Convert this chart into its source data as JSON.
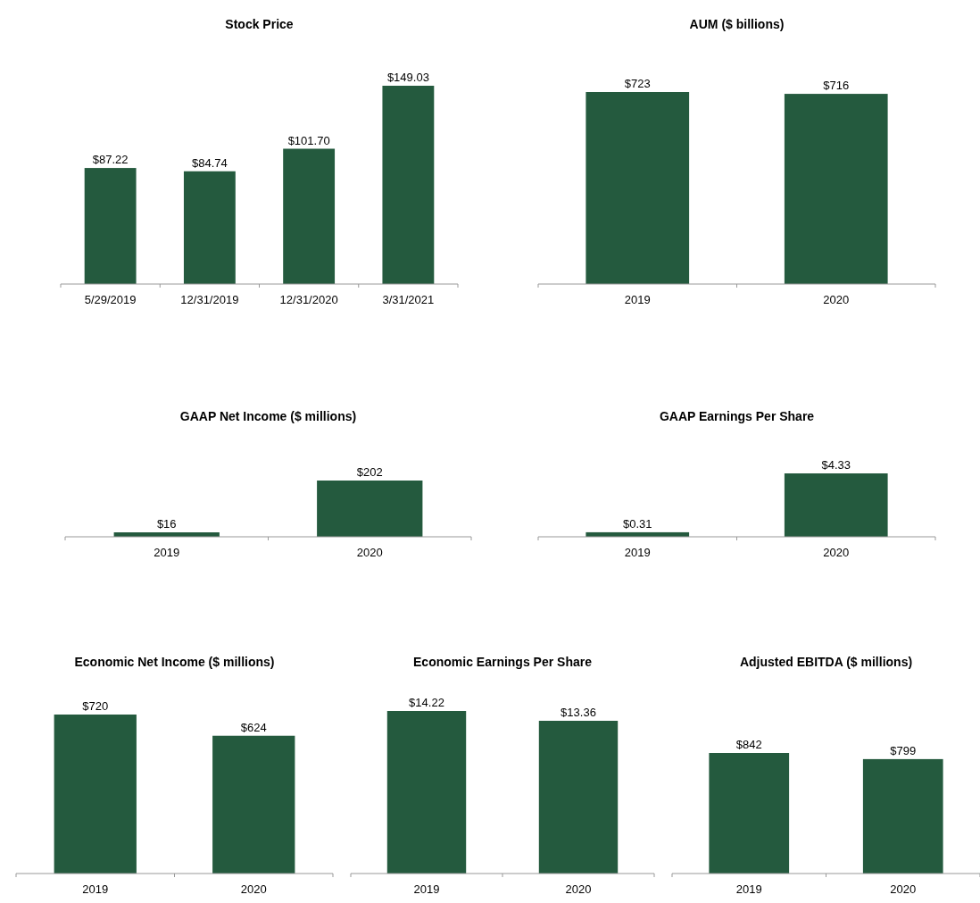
{
  "chart_data": [
    {
      "type": "bar",
      "title": "Stock Price",
      "categories": [
        "5/29/2019",
        "12/31/2019",
        "12/31/2020",
        "3/31/2021"
      ],
      "values": [
        87.22,
        84.74,
        101.7,
        149.03
      ],
      "value_labels": [
        "$87.22",
        "$84.74",
        "$101.70",
        "$149.03"
      ],
      "color": "#245a3e"
    },
    {
      "type": "bar",
      "title": "AUM ($ billions)",
      "categories": [
        "2019",
        "2020"
      ],
      "values": [
        723,
        716
      ],
      "value_labels": [
        "$723",
        "$716"
      ],
      "color": "#245a3e"
    },
    {
      "type": "bar",
      "title": "GAAP Net Income ($ millions)",
      "categories": [
        "2019",
        "2020"
      ],
      "values": [
        16,
        202
      ],
      "value_labels": [
        "$16",
        "$202"
      ],
      "color": "#245a3e"
    },
    {
      "type": "bar",
      "title": "GAAP Earnings Per Share",
      "categories": [
        "2019",
        "2020"
      ],
      "values": [
        0.31,
        4.33
      ],
      "value_labels": [
        "$0.31",
        "$4.33"
      ],
      "color": "#245a3e"
    },
    {
      "type": "bar",
      "title": "Economic Net Income ($ millions)",
      "categories": [
        "2019",
        "2020"
      ],
      "values": [
        720,
        624
      ],
      "value_labels": [
        "$720",
        "$624"
      ],
      "color": "#245a3e"
    },
    {
      "type": "bar",
      "title": "Economic Earnings Per Share",
      "categories": [
        "2019",
        "2020"
      ],
      "values": [
        14.22,
        13.36
      ],
      "value_labels": [
        "$14.22",
        "$13.36"
      ],
      "color": "#245a3e"
    },
    {
      "type": "bar",
      "title": "Adjusted EBITDA ($ millions)",
      "categories": [
        "2019",
        "2020"
      ],
      "values": [
        842,
        799
      ],
      "value_labels": [
        "$842",
        "$799"
      ],
      "color": "#245a3e"
    }
  ]
}
